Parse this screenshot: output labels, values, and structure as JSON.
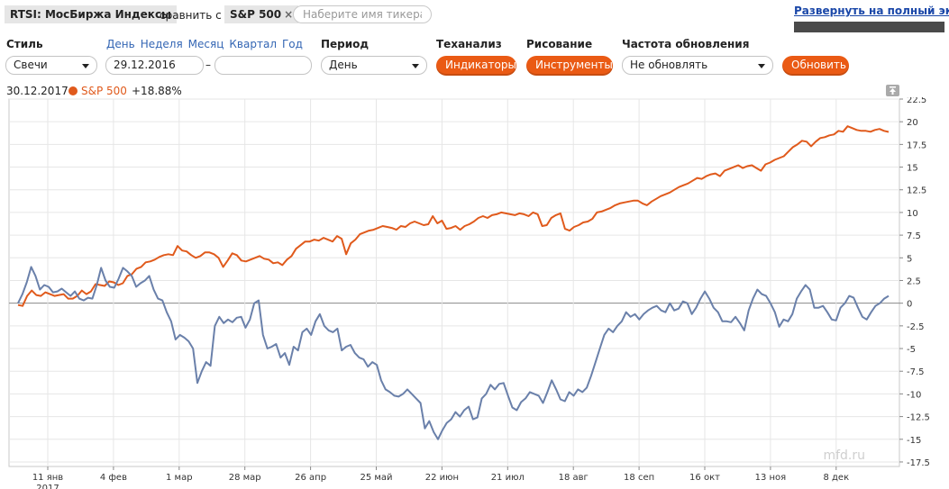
{
  "header": {
    "instrument": "RTSI: МосБиржа Индексы",
    "compare_label": "сравнить с",
    "compare_ticker": "S&P 500",
    "compare_remove": "×",
    "ticker_placeholder": "Наберите имя тикера",
    "fullscreen_link": "Развернуть на полный экран"
  },
  "controls": {
    "style_label": "Стиль",
    "style_value": "Свечи",
    "period_links": [
      "День",
      "Неделя",
      "Месяц",
      "Квартал",
      "Год"
    ],
    "date_from": "29.12.2016",
    "date_sep": "–",
    "date_to": "",
    "period_label": "Период",
    "period_value": "День",
    "techanalysis_label": "Теханализ",
    "indicators_button": "Индикаторы",
    "drawing_label": "Рисование",
    "tools_button": "Инструменты",
    "refresh_label": "Частота обновления",
    "refresh_value": "Не обновлять",
    "update_button": "Обновить"
  },
  "legend": {
    "date": "30.12.2017",
    "series_name": "S&P 500",
    "series_change": "+18.88%"
  },
  "watermark": "mfd.ru",
  "colors": {
    "spx": "#e05a1c",
    "rtsi": "#6a80aa",
    "accent_button": "#ea5a14",
    "link": "#3466b4"
  },
  "chart_data": {
    "type": "line",
    "x_ticks": [
      "11 янв",
      "4 фев",
      "1 мар",
      "28 мар",
      "26 апр",
      "25 май",
      "22 июн",
      "21 июл",
      "18 авг",
      "18 сеп",
      "16 окт",
      "13 ноя",
      "8 дек"
    ],
    "x_year": "2017",
    "y_ticks": [
      "22.5",
      "20",
      "17.5",
      "15",
      "12.5",
      "10",
      "7.5",
      "5",
      "2.5",
      "0",
      "-2.5",
      "-5",
      "-7.5",
      "-10",
      "-12.5",
      "-15",
      "-17.5"
    ],
    "ylim": [
      -18,
      22.5
    ],
    "zero_line": 0,
    "series": [
      {
        "name": "S&P 500",
        "color": "#e05a1c",
        "values": [
          -0.2,
          -0.3,
          0.8,
          1.4,
          0.9,
          0.8,
          1.2,
          1.0,
          0.8,
          0.9,
          1.0,
          0.5,
          0.5,
          0.8,
          1.4,
          1.0,
          1.3,
          2.1,
          2.0,
          1.9,
          2.4,
          2.3,
          2.0,
          2.2,
          3.0,
          3.2,
          3.8,
          4.0,
          4.5,
          4.6,
          4.8,
          5.1,
          5.3,
          5.4,
          5.3,
          6.3,
          5.8,
          5.7,
          5.3,
          5.0,
          5.2,
          5.6,
          5.6,
          5.4,
          5.0,
          4.0,
          4.7,
          5.5,
          5.3,
          4.7,
          4.6,
          4.8,
          5.0,
          5.2,
          4.9,
          4.8,
          4.4,
          4.5,
          4.2,
          4.8,
          5.2,
          6.0,
          6.4,
          6.8,
          6.8,
          7.0,
          6.9,
          7.2,
          7.0,
          6.8,
          7.4,
          7.1,
          5.4,
          6.6,
          7.0,
          7.6,
          7.8,
          8.0,
          8.1,
          8.3,
          8.5,
          8.4,
          8.3,
          8.1,
          8.5,
          8.4,
          8.8,
          9.0,
          8.8,
          8.6,
          8.7,
          9.6,
          8.8,
          9.1,
          8.2,
          8.3,
          8.5,
          8.1,
          8.5,
          8.7,
          9.0,
          9.4,
          9.6,
          9.4,
          9.7,
          9.8,
          10.0,
          9.9,
          9.8,
          9.7,
          9.9,
          9.8,
          9.6,
          10.0,
          9.8,
          8.5,
          8.6,
          9.4,
          9.7,
          9.9,
          8.2,
          8.0,
          8.4,
          8.6,
          8.9,
          9.0,
          9.3,
          10.0,
          10.1,
          10.3,
          10.5,
          10.8,
          11.0,
          11.1,
          11.2,
          11.3,
          11.3,
          11.0,
          10.8,
          11.2,
          11.5,
          11.8,
          12.0,
          12.2,
          12.5,
          12.8,
          13.0,
          13.2,
          13.5,
          13.8,
          13.7,
          14.0,
          14.2,
          14.3,
          14.0,
          14.6,
          14.8,
          15.0,
          15.2,
          14.9,
          15.1,
          15.2,
          14.9,
          14.6,
          15.3,
          15.5,
          15.8,
          16.0,
          16.2,
          16.7,
          17.2,
          17.5,
          17.9,
          17.8,
          17.3,
          17.8,
          18.2,
          18.3,
          18.5,
          18.6,
          19.0,
          18.9,
          19.5,
          19.3,
          19.1,
          19.0,
          19.0,
          18.9,
          19.1,
          19.2,
          19.0,
          18.88
        ]
      },
      {
        "name": "RTSI",
        "color": "#6a80aa",
        "values": [
          0.0,
          1.0,
          2.3,
          4.0,
          3.0,
          1.5,
          2.0,
          1.8,
          1.2,
          1.3,
          1.6,
          1.2,
          0.8,
          1.3,
          0.5,
          0.3,
          0.6,
          0.5,
          2.0,
          3.9,
          2.5,
          1.8,
          1.7,
          2.7,
          3.9,
          3.5,
          3.0,
          1.8,
          2.2,
          2.5,
          3.0,
          1.5,
          0.5,
          0.3,
          -1.0,
          -2.0,
          -4.0,
          -3.5,
          -3.8,
          -4.2,
          -5.0,
          -8.8,
          -7.5,
          -6.5,
          -6.9,
          -2.5,
          -1.5,
          -2.2,
          -1.8,
          -2.1,
          -1.6,
          -1.5,
          -2.7,
          -1.8,
          0.0,
          0.3,
          -3.5,
          -5.0,
          -4.8,
          -4.5,
          -6.0,
          -5.5,
          -6.8,
          -4.8,
          -5.2,
          -3.2,
          -2.8,
          -3.5,
          -2.0,
          -1.2,
          -2.5,
          -3.0,
          -3.2,
          -2.8,
          -5.2,
          -4.8,
          -4.6,
          -5.5,
          -6.0,
          -6.2,
          -7.0,
          -6.5,
          -6.8,
          -8.5,
          -9.5,
          -9.8,
          -10.2,
          -10.3,
          -10.0,
          -9.5,
          -10.0,
          -10.5,
          -11.0,
          -13.8,
          -13.0,
          -14.2,
          -15.0,
          -14.0,
          -13.2,
          -12.8,
          -12.0,
          -12.5,
          -11.8,
          -11.4,
          -12.8,
          -12.6,
          -10.5,
          -10.0,
          -9.0,
          -9.5,
          -8.9,
          -8.8,
          -10.2,
          -11.5,
          -11.8,
          -10.9,
          -10.5,
          -9.8,
          -10.0,
          -10.2,
          -11.0,
          -9.8,
          -8.5,
          -9.5,
          -10.6,
          -10.8,
          -9.8,
          -10.2,
          -9.5,
          -9.8,
          -9.3,
          -8.0,
          -6.5,
          -5.0,
          -3.5,
          -2.8,
          -3.2,
          -2.5,
          -2.0,
          -1.0,
          -1.5,
          -1.2,
          -1.8,
          -1.2,
          -0.8,
          -0.5,
          -0.3,
          -0.8,
          -1.0,
          0.0,
          -0.8,
          -0.6,
          0.2,
          0.0,
          -1.2,
          -0.5,
          0.5,
          1.3,
          0.5,
          -0.5,
          -1.0,
          -2.0,
          -2.0,
          -2.1,
          -1.5,
          -2.2,
          -3.0,
          -0.8,
          0.5,
          1.5,
          1.0,
          0.8,
          0.0,
          -1.0,
          -2.6,
          -1.8,
          -2.0,
          -1.2,
          0.5,
          1.3,
          2.0,
          1.5,
          -0.5,
          -0.5,
          -0.3,
          -1.0,
          -1.8,
          -1.9,
          -0.5,
          0.0,
          0.8,
          0.6,
          -0.5,
          -1.5,
          -1.8,
          -1.0,
          -0.3,
          0.0,
          0.5,
          0.8
        ]
      }
    ]
  }
}
